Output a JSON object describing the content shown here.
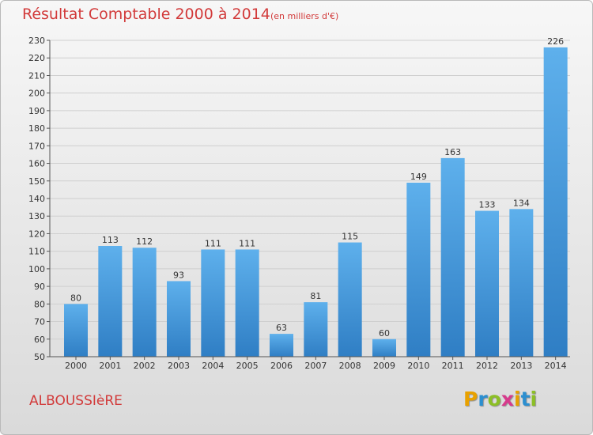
{
  "header": {
    "title": "Résultat Comptable 2000 à 2014",
    "subtitle": "(en milliers d'€)"
  },
  "footer": {
    "commune": "ALBOUSSIèRE",
    "logo": {
      "letters": [
        "P",
        "r",
        "o",
        "x",
        "i",
        "t",
        "i"
      ],
      "colors": [
        "#e8a100",
        "#2c8fd0",
        "#8cbf26",
        "#d73a8c",
        "#e8a100",
        "#2c8fd0",
        "#8cbf26"
      ]
    }
  },
  "colors": {
    "bar": "#3d8fd6",
    "bar_light": "#5eb0ec",
    "grid": "#cfcfcf",
    "text": "#333333",
    "accent": "#d23a3a"
  },
  "chart_data": {
    "type": "bar",
    "title": "Résultat Comptable 2000 à 2014",
    "subtitle": "(en milliers d'€)",
    "categories": [
      "2000",
      "2001",
      "2002",
      "2003",
      "2004",
      "2005",
      "2006",
      "2007",
      "2008",
      "2009",
      "2010",
      "2011",
      "2012",
      "2013",
      "2014"
    ],
    "values": [
      80,
      113,
      112,
      93,
      111,
      111,
      63,
      81,
      115,
      60,
      149,
      163,
      133,
      134,
      226
    ],
    "ylim": [
      50,
      230
    ],
    "yticks": [
      50,
      60,
      70,
      80,
      90,
      100,
      110,
      120,
      130,
      140,
      150,
      160,
      170,
      180,
      190,
      200,
      210,
      220,
      230
    ],
    "xlabel": "",
    "ylabel": "",
    "grid": true
  }
}
